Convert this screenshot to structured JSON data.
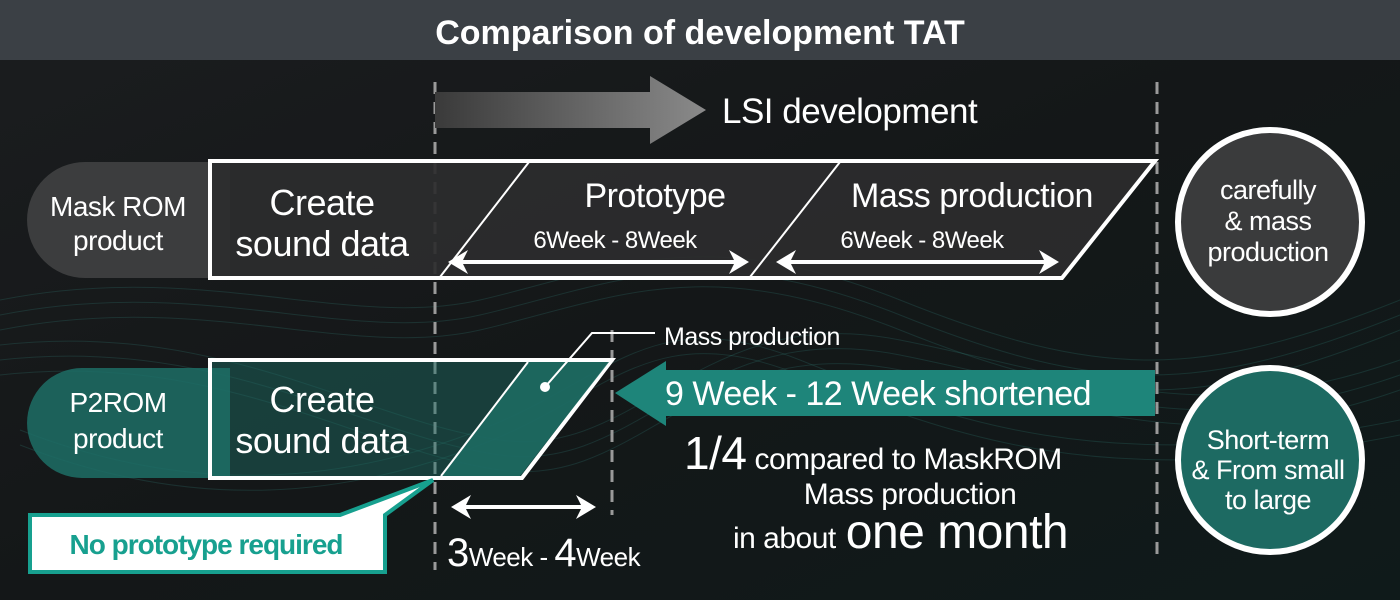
{
  "title": "Comparison of development TAT",
  "lsi_label": "LSI development",
  "mask_rom": {
    "label_line1": "Mask ROM",
    "label_line2": "product",
    "create_line1": "Create",
    "create_line2": "sound data",
    "prototype": "Prototype",
    "prototype_duration": "6Week - 8Week",
    "mass_production": "Mass production",
    "mass_duration": "6Week - 8Week",
    "circle": [
      "carefully",
      "& mass",
      "production"
    ]
  },
  "p2rom": {
    "label_line1": "P2ROM",
    "label_line2": "product",
    "create_line1": "Create",
    "create_line2": "sound data",
    "mass_production": "Mass production",
    "shortened": "9 Week - 12 Week shortened",
    "ratio": "1/4",
    "compared": "compared to MaskROM",
    "line2": "Mass production",
    "line3_prefix": "in about",
    "line3_emph": "one month",
    "duration_num1": "3",
    "duration_unit1": "Week",
    "duration_sep": " - ",
    "duration_num2": "4",
    "duration_unit2": "Week",
    "callout": "No prototype required",
    "circle": [
      "Short-term",
      "& From small",
      "to large"
    ]
  },
  "colors": {
    "teal": "#1d6f66",
    "teal_bright": "#17a08f",
    "dark_box": "#2e2e2e",
    "title_bar": "#3b4045"
  }
}
